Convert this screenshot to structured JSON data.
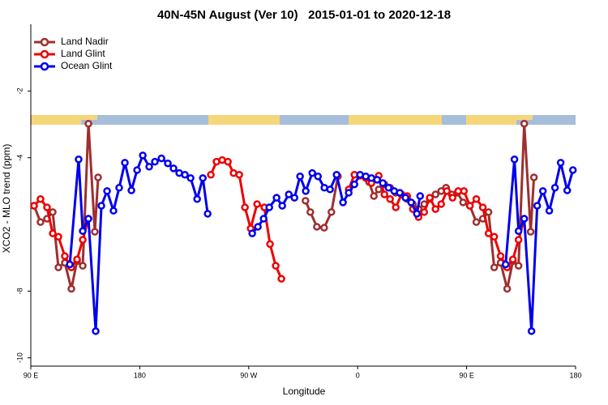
{
  "chart_data": {
    "type": "line",
    "title": "40N-45N August (Ver 10)   2015-01-01 to 2020-12-18",
    "xlabel": "Longitude",
    "ylabel": "XCO2 - MLO trend (ppm)",
    "xlim": [
      90,
      540
    ],
    "ylim": [
      -10.2,
      0
    ],
    "xticks": [
      {
        "value": 90,
        "label": "90 E"
      },
      {
        "value": 180,
        "label": "180"
      },
      {
        "value": 270,
        "label": "90 W"
      },
      {
        "value": 360,
        "label": "0"
      },
      {
        "value": 450,
        "label": "90 E"
      },
      {
        "value": 540,
        "label": "180"
      }
    ],
    "yticks": [
      -10,
      -8,
      -4,
      -2
    ],
    "legend": "top-left",
    "series": [
      {
        "name": "Land Nadir",
        "color": "#9e2f2f",
        "x": [
          92.7,
          98.0,
          103.4,
          108.1,
          112.8,
          118.1,
          123.5,
          128.2,
          132.9,
          137.6,
          142.9,
          145.6,
          null,
          316.9,
          320.9,
          326.3,
          332.3,
          338.3,
          343.7,
          null,
          369.4,
          373.4,
          377.4,
          382.1,
          386.8,
          391.5,
          396.2,
          400.9,
          405.6,
          410.3,
          415.0,
          419.6,
          424.3,
          429.0,
          433.0,
          437.7,
          442.4,
          447.1,
          452.7,
          458.0,
          463.4,
          468.1,
          472.8,
          478.1,
          483.5,
          488.2,
          492.9,
          497.6,
          502.9,
          505.6
        ],
        "values": [
          -5.44,
          -5.93,
          -5.83,
          -5.63,
          -7.29,
          -7.15,
          -7.93,
          -7.1,
          -7.24,
          -2.98,
          -6.22,
          -4.59,
          null,
          -5.29,
          -5.63,
          -6.07,
          -6.1,
          -5.63,
          -4.56,
          null,
          -4.73,
          -5.15,
          -4.95,
          -4.8,
          -4.9,
          -5.05,
          -5.1,
          -5.24,
          -5.39,
          -5.54,
          -5.39,
          -5.24,
          -5.1,
          -5.0,
          -4.9,
          -5.1,
          -5.05,
          -5.34,
          -5.44,
          -5.93,
          -5.83,
          -5.63,
          -7.29,
          -7.15,
          -7.93,
          -7.1,
          -7.24,
          -2.98,
          -6.22,
          -4.59
        ]
      },
      {
        "name": "Land Glint",
        "color": "#ee0000",
        "x": [
          92.7,
          98.0,
          103.4,
          108.1,
          112.8,
          118.1,
          123.5,
          128.2,
          132.9,
          137.6,
          null,
          238.7,
          243.4,
          248.1,
          252.8,
          257.5,
          262.2,
          266.9,
          271.6,
          276.9,
          282.9,
          287.6,
          292.3,
          297.0,
          null,
          352.6,
          357.3,
          362.0,
          366.7,
          371.4,
          377.4,
          382.1,
          386.8,
          391.5,
          396.2,
          400.9,
          405.6,
          410.3,
          415.0,
          419.6,
          424.3,
          429.0,
          433.7,
          438.4,
          443.1,
          447.8,
          452.7,
          458.0,
          463.4,
          468.1,
          472.8,
          478.1,
          483.5,
          488.2,
          492.9,
          497.6
        ],
        "values": [
          -5.44,
          -5.24,
          -5.49,
          -6.27,
          -6.37,
          -6.95,
          -7.29,
          -7.05,
          -6.46,
          -5.83,
          null,
          -4.51,
          -4.12,
          -4.07,
          -4.12,
          -4.46,
          -4.51,
          -5.49,
          -6.12,
          -5.39,
          -5.49,
          -6.59,
          -7.24,
          -7.63,
          null,
          -4.95,
          -4.51,
          -4.54,
          -4.61,
          -4.76,
          -4.54,
          -5.1,
          -5.24,
          -5.49,
          -5.1,
          -5.15,
          -5.54,
          -5.78,
          -5.63,
          -5.2,
          -5.54,
          -5.39,
          -5.0,
          -5.2,
          -5.0,
          -5.0,
          -5.44,
          -5.24,
          -5.49,
          -6.27,
          -6.37,
          -6.95,
          -7.29,
          -7.05,
          -6.46,
          -5.83
        ]
      },
      {
        "name": "Ocean Glint",
        "color": "#0000ee",
        "x": [
          122.2,
          129.5,
          132.9,
          137.6,
          143.6,
          148.3,
          153.0,
          158.3,
          163.0,
          167.7,
          173.1,
          177.8,
          182.5,
          187.8,
          192.5,
          197.9,
          203.2,
          207.9,
          212.6,
          217.3,
          222.0,
          227.4,
          232.1,
          236.1,
          null,
          272.9,
          277.6,
          282.3,
          287.0,
          293.0,
          297.7,
          303.1,
          307.8,
          312.4,
          317.1,
          322.5,
          327.2,
          332.5,
          337.2,
          342.6,
          347.9,
          352.6,
          357.3,
          362.0,
          366.7,
          371.4,
          376.1,
          380.8,
          385.5,
          390.2,
          394.8,
          399.5,
          404.2,
          408.9,
          411.6,
          null,
          482.2,
          489.5,
          492.9,
          497.6,
          503.6,
          508.3,
          513.0,
          518.3,
          523.0,
          527.7,
          533.1,
          537.8
        ],
        "values": [
          -7.2,
          -4.05,
          -6.2,
          -5.83,
          -9.2,
          -5.44,
          -5.0,
          -5.59,
          -4.9,
          -4.15,
          -4.98,
          -4.37,
          -3.93,
          -4.27,
          -4.12,
          -4.02,
          -4.17,
          -4.32,
          -4.46,
          -4.51,
          -4.61,
          -5.24,
          -4.61,
          -5.68,
          null,
          -6.27,
          -6.07,
          -5.83,
          -5.49,
          -5.2,
          -5.44,
          -5.1,
          -5.2,
          -4.56,
          -5.0,
          -4.46,
          -4.56,
          -4.9,
          -4.95,
          -4.51,
          -5.34,
          -5.05,
          -4.8,
          -4.51,
          -4.56,
          -4.61,
          -4.66,
          -4.76,
          -4.9,
          -5.0,
          -5.05,
          -5.2,
          -5.34,
          -5.68,
          -5.15,
          null,
          -7.2,
          -4.05,
          -6.2,
          -5.83,
          -9.2,
          -5.44,
          -5.0,
          -5.59,
          -4.9,
          -4.15,
          -4.98,
          -4.37
        ]
      }
    ]
  }
}
